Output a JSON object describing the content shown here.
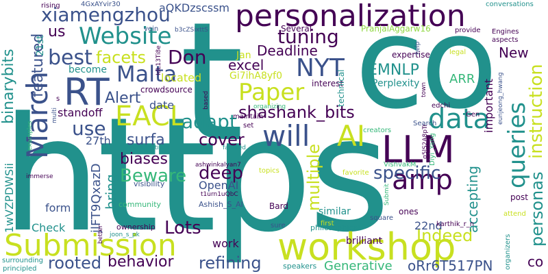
{
  "palette": {
    "background": "#ffffff",
    "dark_purple": "#440154",
    "indigo": "#3b528b",
    "blue": "#31688e",
    "teal": "#21918c",
    "green": "#35b779",
    "yellow_green": "#90d743",
    "yellow": "#c8e020"
  },
  "words": [
    {
      "text": "https",
      "color": "#21918c"
    },
    {
      "text": "t",
      "color": "#21918c"
    },
    {
      "text": "co",
      "color": "#21918c"
    },
    {
      "text": "personalization",
      "color": "#440154"
    },
    {
      "text": "workshop",
      "color": "#c8e020"
    },
    {
      "text": "Submission",
      "color": "#c8e020"
    },
    {
      "text": "LLM",
      "color": "#440154"
    },
    {
      "text": "RT",
      "color": "#3b528b"
    },
    {
      "text": "Website",
      "color": "#21918c"
    },
    {
      "text": "Malta",
      "color": "#3b528b"
    },
    {
      "text": "xiamengzhou",
      "color": "#3b528b"
    },
    {
      "text": "March",
      "color": "#3b528b"
    },
    {
      "text": "EACL",
      "color": "#c8e020"
    },
    {
      "text": "NYT",
      "color": "#3b528b"
    },
    {
      "text": "Paper",
      "color": "#c8e020"
    },
    {
      "text": "will",
      "color": "#3b528b"
    },
    {
      "text": "AI",
      "color": "#c8e020"
    },
    {
      "text": "data",
      "color": "#21918c"
    },
    {
      "text": "tuning",
      "color": "#440154"
    },
    {
      "text": "best",
      "color": "#3b528b"
    },
    {
      "text": "facets",
      "color": "#c8e020"
    },
    {
      "text": "Don",
      "color": "#440154"
    },
    {
      "text": "amp",
      "color": "#440154"
    },
    {
      "text": "queries",
      "color": "#21918c"
    },
    {
      "text": "instruction",
      "color": "#c8e020"
    },
    {
      "text": "personas",
      "color": "#21918c"
    },
    {
      "text": "specific",
      "color": "#3b528b"
    },
    {
      "text": "shashank_bits",
      "color": "#440154"
    },
    {
      "text": "adapt",
      "color": "#21918c"
    },
    {
      "text": "Alert",
      "color": "#3b528b"
    },
    {
      "text": "use",
      "color": "#3b528b"
    },
    {
      "text": "cover",
      "color": "#440154"
    },
    {
      "text": "surfa",
      "color": "#3b528b"
    },
    {
      "text": "Beware",
      "color": "#35b779"
    },
    {
      "text": "deep",
      "color": "#440154"
    },
    {
      "text": "biases",
      "color": "#440154"
    },
    {
      "text": "Lots",
      "color": "#440154"
    },
    {
      "text": "rooted",
      "color": "#3b528b"
    },
    {
      "text": "behavior",
      "color": "#440154"
    },
    {
      "text": "refining",
      "color": "#3b528b"
    },
    {
      "text": "multiple",
      "color": "#c8e020"
    },
    {
      "text": "Indeed",
      "color": "#c8e020"
    },
    {
      "text": "Generative",
      "color": "#35b779"
    },
    {
      "text": "oRr6T517PN",
      "color": "#3b528b"
    },
    {
      "text": "binarybits",
      "color": "#21918c"
    },
    {
      "text": "featured",
      "color": "#3b528b"
    },
    {
      "text": "EMNLP",
      "color": "#21918c"
    },
    {
      "text": "Deadline",
      "color": "#440154"
    },
    {
      "text": "excel",
      "color": "#440154"
    },
    {
      "text": "New",
      "color": "#440154"
    },
    {
      "text": "ARR",
      "color": "#35b779"
    },
    {
      "text": "accepting",
      "color": "#21918c"
    },
    {
      "text": "22nd",
      "color": "#3b528b"
    },
    {
      "text": "aQKDzscssm",
      "color": "#3b528b"
    },
    {
      "text": "located",
      "color": "#c8e020"
    },
    {
      "text": "Gi7ihA8yf0",
      "color": "#c8e020"
    },
    {
      "text": "Jan",
      "color": "#c8e020"
    },
    {
      "text": "OpenAI",
      "color": "#3b528b"
    },
    {
      "text": "jlFT9QxazD",
      "color": "#3b528b"
    },
    {
      "text": "1wVZPDWSii",
      "color": "#21918c"
    },
    {
      "text": "27th",
      "color": "#3b528b"
    },
    {
      "text": "bring",
      "color": "#21918c"
    },
    {
      "text": "form",
      "color": "#3b528b"
    },
    {
      "text": "Check",
      "color": "#21918c"
    },
    {
      "text": "work",
      "color": "#440154"
    },
    {
      "text": "similar",
      "color": "#21918c"
    },
    {
      "text": "brilliant",
      "color": "#440154"
    },
    {
      "text": "us",
      "color": "#440154"
    },
    {
      "text": "21st",
      "color": "#21918c"
    },
    {
      "text": "date",
      "color": "#3b528b"
    },
    {
      "text": "standoff",
      "color": "#440154"
    },
    {
      "text": "important",
      "color": "#440154"
    },
    {
      "text": "Perplexity",
      "color": "#21918c"
    },
    {
      "text": "become",
      "color": "#21918c"
    },
    {
      "text": "crowdsource",
      "color": "#440154"
    },
    {
      "text": "Several",
      "color": "#440154"
    },
    {
      "text": "PranjalAggarw16",
      "color": "#90d743"
    },
    {
      "text": "expertise",
      "color": "#440154"
    },
    {
      "text": "interest",
      "color": "#440154"
    },
    {
      "text": "technical",
      "color": "#21918c"
    },
    {
      "text": "4GxAYvir30",
      "color": "#3b528b"
    },
    {
      "text": "rising",
      "color": "#440154"
    },
    {
      "text": "vein",
      "color": "#3b528b"
    },
    {
      "text": "b3cZSixttS",
      "color": "#3b528b"
    },
    {
      "text": "IdL13Ti8e",
      "color": "#440154"
    },
    {
      "text": "conversations",
      "color": "#21918c"
    },
    {
      "text": "provide",
      "color": "#440154"
    },
    {
      "text": "Engines",
      "color": "#440154"
    },
    {
      "text": "aspects",
      "color": "#440154"
    },
    {
      "text": "legal",
      "color": "#c8e020"
    },
    {
      "text": "help",
      "color": "#3b528b"
    },
    {
      "text": "town",
      "color": "#440154"
    },
    {
      "text": "edchi",
      "color": "#440154"
    },
    {
      "text": "eunjeong_hwang",
      "color": "#3b528b"
    },
    {
      "text": "Gen",
      "color": "#440154"
    },
    {
      "text": "Search",
      "color": "#3b528b"
    },
    {
      "text": "creators",
      "color": "#35b779"
    },
    {
      "text": "q5lS2A8pTr",
      "color": "#440154"
    },
    {
      "text": "Diyi_Yang",
      "color": "#35b779"
    },
    {
      "text": "VishvakM",
      "color": "#35b779"
    },
    {
      "text": "favorite",
      "color": "#c8e020"
    },
    {
      "text": "topics",
      "color": "#c8e020"
    },
    {
      "text": "Bard",
      "color": "#440154"
    },
    {
      "text": "Submit",
      "color": "#35b779"
    },
    {
      "text": "post",
      "color": "#440154"
    },
    {
      "text": "attend",
      "color": "#c8e020"
    },
    {
      "text": "ones",
      "color": "#440154"
    },
    {
      "text": "first",
      "color": "#c8e020"
    },
    {
      "text": "square",
      "color": "#3b528b"
    },
    {
      "text": "sure",
      "color": "#3b528b"
    },
    {
      "text": "philosophical",
      "color": "#21918c"
    },
    {
      "text": "karthik_r_n",
      "color": "#440154"
    },
    {
      "text": "Ashish_S_AI",
      "color": "#3b528b"
    },
    {
      "text": "ownership",
      "color": "#440154"
    },
    {
      "text": "joon_s_pk",
      "color": "#21918c"
    },
    {
      "text": "better",
      "color": "#440154"
    },
    {
      "text": "community",
      "color": "#35b779"
    },
    {
      "text": "visibility",
      "color": "#3b528b"
    },
    {
      "text": "t1urn1uQbC",
      "color": "#440154"
    },
    {
      "text": "ashwinkalyan7",
      "color": "#440154"
    },
    {
      "text": "perspectives",
      "color": "#21918c"
    },
    {
      "text": "faceted",
      "color": "#21918c"
    },
    {
      "text": "set",
      "color": "#440154"
    },
    {
      "text": "maintain",
      "color": "#440154"
    },
    {
      "text": "organizing",
      "color": "#35b779"
    },
    {
      "text": "based",
      "color": "#440154"
    },
    {
      "text": "multi",
      "color": "#3b528b"
    },
    {
      "text": "examples",
      "color": "#35b779"
    },
    {
      "text": "immerse",
      "color": "#440154"
    },
    {
      "text": "surrounding",
      "color": "#21918c"
    },
    {
      "text": "principled",
      "color": "#21918c"
    },
    {
      "text": "speakers",
      "color": "#21918c"
    },
    {
      "text": "organizers",
      "color": "#21918c"
    },
    {
      "text": "s",
      "color": "#440154"
    },
    {
      "text": "co",
      "color": "#440154"
    }
  ]
}
